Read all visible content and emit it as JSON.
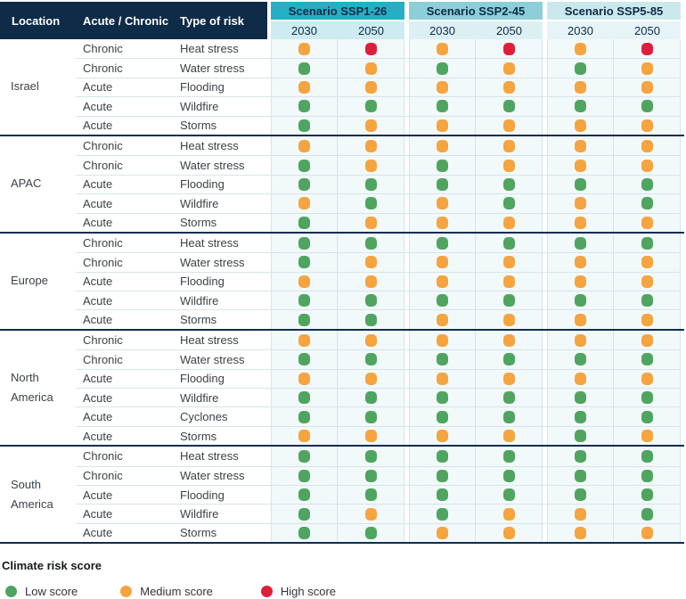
{
  "colors": {
    "low": "#4FA55F",
    "medium": "#F5A43F",
    "high": "#E01E3C",
    "header_navy": "#0E2B47",
    "group_separator": "#0F2E4E",
    "cell_bg": "#F2F9FB",
    "cell_border": "#CFE7EC"
  },
  "table": {
    "columns": [
      "Location",
      "Acute / Chronic",
      "Type of risk"
    ],
    "scenarios": [
      {
        "label": "Scenario SSP1-26",
        "years": [
          "2030",
          "2050"
        ],
        "header_bg": "#25AFC4",
        "years_bg": "#CDEBF1"
      },
      {
        "label": "Scenario SSP2-45",
        "years": [
          "2030",
          "2050"
        ],
        "header_bg": "#8CCFD9",
        "years_bg": "#DCF0F4"
      },
      {
        "label": "Scenario SSP5-85",
        "years": [
          "2030",
          "2050"
        ],
        "header_bg": "#CBE9ED",
        "years_bg": "#E7F4F7"
      }
    ],
    "groups": [
      {
        "location": "Israel",
        "rows": [
          {
            "type": "Chronic",
            "risk": "Heat stress",
            "scores": [
              "medium",
              "high",
              "medium",
              "high",
              "medium",
              "high"
            ]
          },
          {
            "type": "Chronic",
            "risk": "Water stress",
            "scores": [
              "low",
              "medium",
              "low",
              "medium",
              "low",
              "medium"
            ]
          },
          {
            "type": "Acute",
            "risk": "Flooding",
            "scores": [
              "medium",
              "medium",
              "medium",
              "medium",
              "medium",
              "medium"
            ]
          },
          {
            "type": "Acute",
            "risk": "Wildfire",
            "scores": [
              "low",
              "low",
              "low",
              "low",
              "low",
              "low"
            ]
          },
          {
            "type": "Acute",
            "risk": "Storms",
            "scores": [
              "low",
              "medium",
              "medium",
              "medium",
              "medium",
              "medium"
            ]
          }
        ]
      },
      {
        "location": "APAC",
        "rows": [
          {
            "type": "Chronic",
            "risk": "Heat stress",
            "scores": [
              "medium",
              "medium",
              "medium",
              "medium",
              "medium",
              "medium"
            ]
          },
          {
            "type": "Chronic",
            "risk": "Water stress",
            "scores": [
              "low",
              "medium",
              "low",
              "medium",
              "medium",
              "medium"
            ]
          },
          {
            "type": "Acute",
            "risk": "Flooding",
            "scores": [
              "low",
              "low",
              "low",
              "low",
              "low",
              "low"
            ]
          },
          {
            "type": "Acute",
            "risk": "Wildfire",
            "scores": [
              "medium",
              "low",
              "medium",
              "low",
              "medium",
              "low"
            ]
          },
          {
            "type": "Acute",
            "risk": "Storms",
            "scores": [
              "low",
              "medium",
              "medium",
              "medium",
              "medium",
              "medium"
            ]
          }
        ]
      },
      {
        "location": "Europe",
        "rows": [
          {
            "type": "Chronic",
            "risk": "Heat stress",
            "scores": [
              "low",
              "low",
              "low",
              "low",
              "low",
              "low"
            ]
          },
          {
            "type": "Chronic",
            "risk": "Water stress",
            "scores": [
              "low",
              "medium",
              "medium",
              "medium",
              "medium",
              "medium"
            ]
          },
          {
            "type": "Acute",
            "risk": "Flooding",
            "scores": [
              "medium",
              "medium",
              "medium",
              "medium",
              "medium",
              "medium"
            ]
          },
          {
            "type": "Acute",
            "risk": "Wildfire",
            "scores": [
              "low",
              "low",
              "low",
              "low",
              "low",
              "low"
            ]
          },
          {
            "type": "Acute",
            "risk": "Storms",
            "scores": [
              "low",
              "low",
              "medium",
              "medium",
              "medium",
              "medium"
            ]
          }
        ]
      },
      {
        "location": "North America",
        "rows": [
          {
            "type": "Chronic",
            "risk": "Heat stress",
            "scores": [
              "medium",
              "medium",
              "medium",
              "medium",
              "medium",
              "medium"
            ]
          },
          {
            "type": "Chronic",
            "risk": "Water stress",
            "scores": [
              "low",
              "low",
              "low",
              "low",
              "low",
              "low"
            ]
          },
          {
            "type": "Acute",
            "risk": "Flooding",
            "scores": [
              "medium",
              "medium",
              "medium",
              "medium",
              "medium",
              "medium"
            ]
          },
          {
            "type": "Acute",
            "risk": "Wildfire",
            "scores": [
              "low",
              "low",
              "low",
              "low",
              "low",
              "low"
            ]
          },
          {
            "type": "Acute",
            "risk": "Cyclones",
            "scores": [
              "low",
              "low",
              "low",
              "low",
              "low",
              "low"
            ]
          },
          {
            "type": "Acute",
            "risk": "Storms",
            "scores": [
              "medium",
              "medium",
              "medium",
              "medium",
              "low",
              "medium"
            ]
          }
        ]
      },
      {
        "location": "South America",
        "rows": [
          {
            "type": "Chronic",
            "risk": "Heat stress",
            "scores": [
              "low",
              "low",
              "low",
              "low",
              "low",
              "low"
            ]
          },
          {
            "type": "Chronic",
            "risk": "Water stress",
            "scores": [
              "low",
              "low",
              "low",
              "low",
              "low",
              "low"
            ]
          },
          {
            "type": "Acute",
            "risk": "Flooding",
            "scores": [
              "low",
              "low",
              "low",
              "low",
              "low",
              "low"
            ]
          },
          {
            "type": "Acute",
            "risk": "Wildfire",
            "scores": [
              "low",
              "medium",
              "low",
              "medium",
              "medium",
              "low"
            ]
          },
          {
            "type": "Acute",
            "risk": "Storms",
            "scores": [
              "low",
              "low",
              "medium",
              "medium",
              "medium",
              "medium"
            ]
          }
        ]
      }
    ]
  },
  "legend": {
    "title": "Climate risk score",
    "items": [
      {
        "level": "low",
        "label": "Low score"
      },
      {
        "level": "medium",
        "label": "Medium score"
      },
      {
        "level": "high",
        "label": "High score"
      }
    ]
  }
}
